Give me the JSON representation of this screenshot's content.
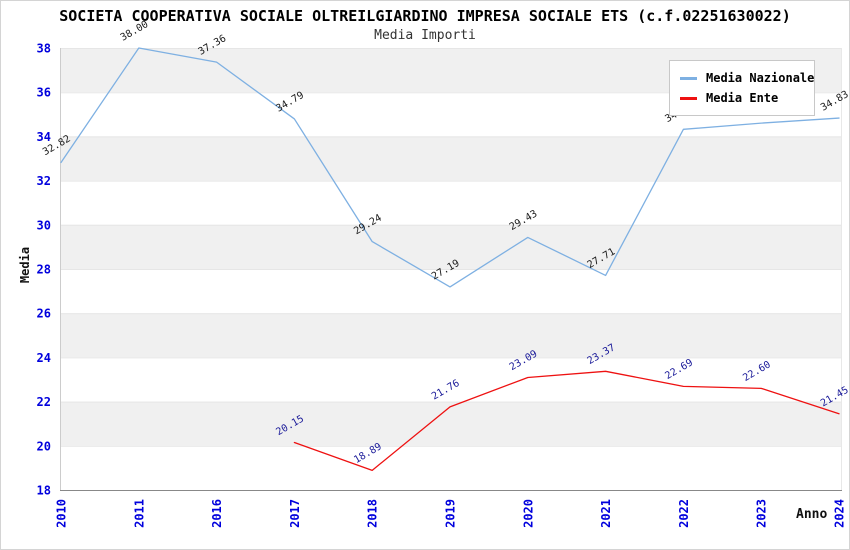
{
  "header": {
    "title": "SOCIETA COOPERATIVA SOCIALE OLTREILGIARDINO IMPRESA SOCIALE ETS (c.f.02251630022)",
    "subtitle": "Media Importi"
  },
  "legend": {
    "position": "top-right",
    "items": [
      {
        "label": "Media Nazionale",
        "color": "#7eb0e2"
      },
      {
        "label": "Media Ente",
        "color": "#ee1111"
      }
    ]
  },
  "chart_data": {
    "type": "line",
    "title": "SOCIETA COOPERATIVA SOCIALE OLTREILGIARDINO IMPRESA SOCIALE ETS (c.f.02251630022)",
    "subtitle": "Media Importi",
    "xlabel": "Anno",
    "ylabel": "Media",
    "categories": [
      "2010",
      "2011",
      "2016",
      "2017",
      "2018",
      "2019",
      "2020",
      "2021",
      "2022",
      "2023",
      "2024"
    ],
    "series": [
      {
        "name": "Media Nazionale",
        "color": "#7eb0e2",
        "label_color": "#1a1a1a",
        "values": [
          32.82,
          38.0,
          37.36,
          34.79,
          29.24,
          27.19,
          29.43,
          27.71,
          34.32,
          34.6,
          34.83
        ]
      },
      {
        "name": "Media Ente",
        "color": "#ee1111",
        "label_color": "#1a1a99",
        "values": [
          null,
          null,
          null,
          20.15,
          18.89,
          21.76,
          23.09,
          23.37,
          22.69,
          22.6,
          21.45
        ]
      }
    ],
    "ylim": [
      18,
      38
    ],
    "ytick_step": 2,
    "grid": true,
    "band_color": "#f0f0f0",
    "band_alt_color": "#ffffff",
    "tick_color": "#0000dd",
    "axis_color": "#888888",
    "value_label_rotation_deg": -30,
    "xtick_rotation_deg": -90
  }
}
